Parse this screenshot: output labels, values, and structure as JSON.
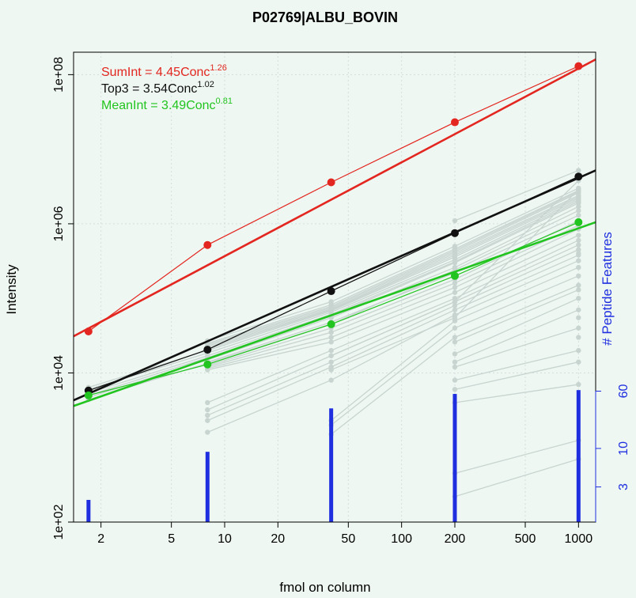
{
  "chart_data": {
    "type": "line",
    "title": "P02769|ALBU_BOVIN",
    "xlabel": "fmol on column",
    "ylabel": "Intensity",
    "y2label": "# Peptide Features",
    "x_scale": "log",
    "y_scale": "log",
    "xlim": [
      1.4,
      1250
    ],
    "ylim": [
      100,
      200000000
    ],
    "x_ticks": [
      2,
      5,
      10,
      20,
      50,
      100,
      200,
      500,
      1000
    ],
    "y_ticks": [
      100,
      10000,
      1000000,
      100000000
    ],
    "y_tick_labels": [
      "1e+02",
      "1e+04",
      "1e+06",
      "1e+08"
    ],
    "y2_ticks": [
      3,
      10,
      60
    ],
    "grid": true,
    "x": [
      1.7,
      8,
      40,
      200,
      1000
    ],
    "series": [
      {
        "name": "SumInt",
        "color": "#e3261f",
        "values": [
          36000,
          520000,
          3600000,
          23000000,
          130000000
        ]
      },
      {
        "name": "Top3",
        "color": "#111111",
        "values": [
          5800,
          20500,
          125000,
          750000,
          4300000
        ]
      },
      {
        "name": "MeanInt",
        "color": "#22c41f",
        "values": [
          5000,
          13000,
          45000,
          200000,
          1050000
        ]
      }
    ],
    "fits": [
      {
        "name": "SumInt",
        "label": "SumInt = 4.45Conc",
        "exponent": "1.26",
        "color": "#e3261f",
        "y_at_xmin": 31000,
        "y_at_xmax": 160000000
      },
      {
        "name": "Top3",
        "label": "Top3 = 3.54Conc",
        "exponent": "1.02",
        "color": "#111111",
        "y_at_xmin": 4300.0,
        "y_at_xmax": 5200000
      },
      {
        "name": "MeanInt",
        "label": "MeanInt = 3.49Conc",
        "exponent": "0.81",
        "color": "#22c41f",
        "y_at_xmin": 3600,
        "y_at_xmax": 1050000
      }
    ],
    "peptide_features": {
      "color": "#1f2fe0",
      "x": [
        1.7,
        8,
        40,
        200,
        1000
      ],
      "counts": [
        2,
        9,
        35,
        55,
        62
      ]
    },
    "peptides": {
      "color": "#c8d4d0",
      "lines": [
        [
          4400,
          13500,
          45000,
          240000,
          1500000
        ],
        [
          4700,
          15000,
          55000,
          260000,
          1700000
        ],
        [
          5000,
          16000,
          58000,
          300000,
          1900000
        ],
        [
          5400,
          17000,
          61000,
          310000,
          2000000
        ],
        [
          6000,
          18500,
          65000,
          330000,
          2100000
        ],
        [
          6400,
          20000,
          68000,
          360000,
          2200000
        ],
        [
          null,
          21000,
          70000,
          380000,
          2300000
        ],
        [
          null,
          22000,
          72000,
          400000,
          2400000
        ],
        [
          null,
          23000,
          75000,
          420000,
          2600000
        ],
        [
          null,
          24000,
          78000,
          440000,
          2700000
        ],
        [
          null,
          25000,
          82000,
          460000,
          2800000
        ],
        [
          null,
          27000,
          90000,
          500000,
          3000000
        ],
        [
          null,
          14000,
          48000,
          220000,
          1300000
        ],
        [
          null,
          12500,
          40000,
          180000,
          1100000
        ],
        [
          null,
          12000,
          35000,
          160000,
          950000
        ],
        [
          null,
          11500,
          30000,
          140000,
          850000
        ],
        [
          null,
          11000,
          26000,
          120000,
          700000
        ],
        [
          null,
          4000,
          20000,
          100000,
          600000
        ],
        [
          null,
          3200,
          17000,
          90000,
          520000
        ],
        [
          null,
          2700,
          14000,
          80000,
          450000
        ],
        [
          null,
          2300,
          12000,
          70000,
          380000
        ],
        [
          null,
          1600,
          8000,
          60000,
          320000
        ],
        [
          null,
          null,
          2300,
          50000,
          260000
        ],
        [
          null,
          null,
          2000,
          40000,
          200000
        ],
        [
          null,
          null,
          1500,
          30000,
          150000
        ],
        [
          null,
          null,
          null,
          26000,
          130000
        ],
        [
          null,
          null,
          null,
          18000,
          100000
        ],
        [
          null,
          null,
          null,
          14000,
          70000
        ],
        [
          null,
          null,
          null,
          12000,
          40000
        ],
        [
          null,
          null,
          null,
          8000,
          20000
        ],
        [
          null,
          null,
          null,
          6000,
          14000
        ],
        [
          null,
          null,
          null,
          1100000,
          5200000
        ],
        [
          null,
          null,
          null,
          450,
          1250
        ],
        [
          null,
          null,
          null,
          220,
          700
        ],
        [
          null,
          null,
          17000,
          90000,
          3800000
        ],
        [
          null,
          null,
          11000,
          55000,
          2900000
        ],
        [
          null,
          null,
          null,
          4000,
          7000
        ],
        [
          null,
          null,
          null,
          null,
          400000
        ],
        [
          null,
          null,
          null,
          null,
          55000
        ],
        [
          null,
          null,
          null,
          null,
          30000
        ]
      ]
    }
  }
}
